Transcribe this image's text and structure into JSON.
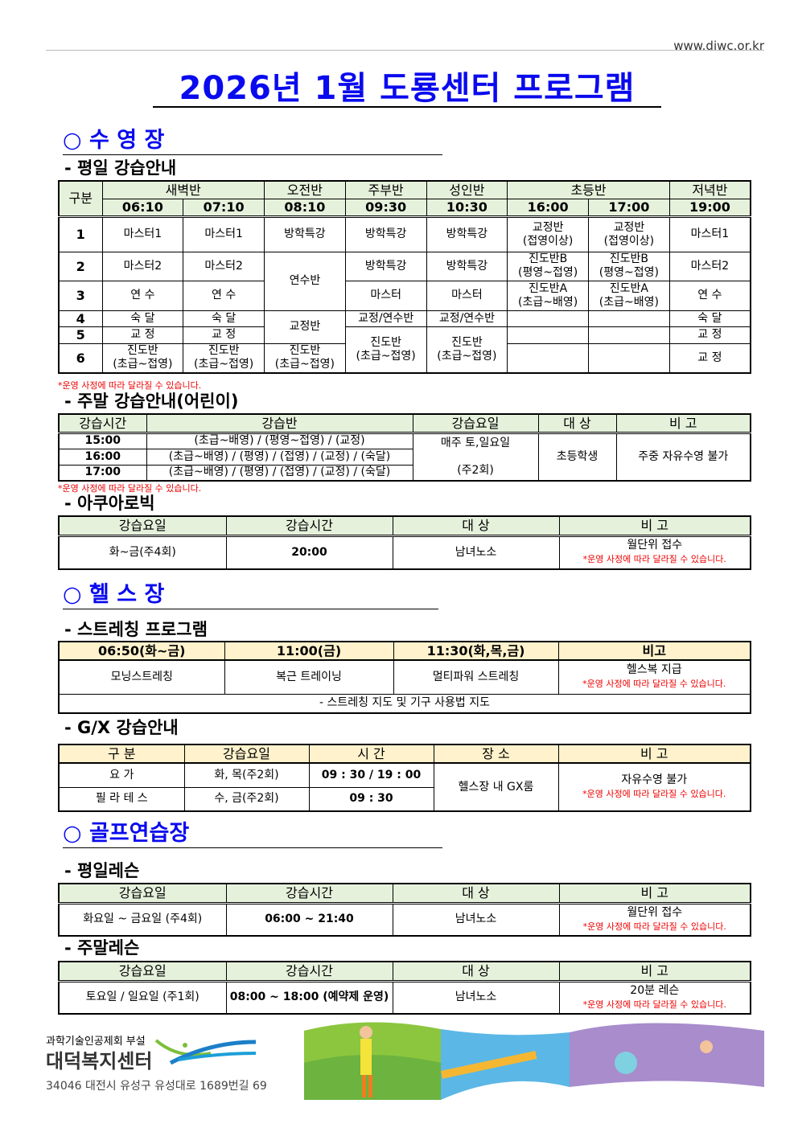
{
  "url": "www.diwc.or.kr",
  "title": "2026년 1월 도룡센터 프로그램",
  "pool": {
    "heading": "○ 수 영 장",
    "weekday": {
      "heading": "- 평일 강습안내",
      "col_label": "구분",
      "groups": [
        "새벽반",
        "오전반",
        "주부반",
        "성인반",
        "초등반",
        "저녁반"
      ],
      "times": [
        "06:10",
        "07:10",
        "08:10",
        "09:30",
        "10:30",
        "16:00",
        "17:00",
        "19:00"
      ],
      "rows": {
        "r1": [
          "1",
          "마스터1",
          "마스터1",
          "방학특강",
          "방학특강",
          "방학특강",
          "교정반\n(접영이상)",
          "교정반\n(접영이상)",
          "마스터1"
        ],
        "r2": [
          "2",
          "마스터2",
          "마스터2",
          "연수반",
          "방학특강",
          "방학특강",
          "진도반B\n(평영~접영)",
          "진도반B\n(평영~접영)",
          "마스터2"
        ],
        "r3": [
          "3",
          "연 수",
          "연 수",
          "마스터",
          "마스터",
          "진도반A\n(초급~배영)",
          "진도반A\n(초급~배영)",
          "연 수"
        ],
        "r4": [
          "4",
          "숙 달",
          "숙 달",
          "교정반",
          "교정/연수반",
          "교정/연수반",
          "",
          "",
          "숙 달"
        ],
        "r5": [
          "5",
          "교 정",
          "교 정",
          "진도반\n(초급~접영)",
          "진도반\n(초급~접영)",
          "",
          "",
          "교 정"
        ],
        "r6": [
          "6",
          "진도반\n(초급~접영)",
          "진도반\n(초급~접영)",
          "진도반\n(초급~접영)",
          "",
          "",
          "교 정"
        ]
      },
      "note": "*운영 사정에 따라 달라질 수 있습니다."
    },
    "weekend": {
      "heading": "- 주말 강습안내(어린이)",
      "headers": [
        "강습시간",
        "강습반",
        "강습요일",
        "대 상",
        "비 고"
      ],
      "rows": [
        {
          "time": "15:00",
          "class": "(초급~배영) / (평영~접영) / (교정)"
        },
        {
          "time": "16:00",
          "class": "(초급~배영) / (평영) / (접영) / (교정) / (숙달)"
        },
        {
          "time": "17:00",
          "class": "(초급~배영) / (평영) / (접영) / (교정) / (숙달)"
        }
      ],
      "days": "매주 토,일요일",
      "days2": "(주2회)",
      "target": "초등학생",
      "remark": "주중 자유수영 불가",
      "note": "*운영 사정에 따라 달라질 수 있습니다."
    },
    "aqua": {
      "heading": "- 아쿠아로빅",
      "headers": [
        "강습요일",
        "강습시간",
        "대 상",
        "비 고"
      ],
      "row": [
        "화~금(주4회)",
        "20:00",
        "남녀노소",
        "월단위 접수"
      ],
      "note": "*운영 사정에 따라 달라질 수 있습니다."
    }
  },
  "gym": {
    "heading": "○ 헬 스 장",
    "stretch": {
      "heading": "- 스트레칭 프로그램",
      "headers": [
        "06:50(화~금)",
        "11:00(금)",
        "11:30(화,목,금)",
        "비고"
      ],
      "row": [
        "모닝스트레칭",
        "복근 트레이닝",
        "멀티파워 스트레칭",
        "헬스복 지급"
      ],
      "note": "*운영 사정에 따라 달라질 수 있습니다.",
      "footer": "- 스트레칭 지도 및 기구 사용법 지도"
    },
    "gx": {
      "heading": "- G/X 강습안내",
      "headers": [
        "구 분",
        "강습요일",
        "시 간",
        "장 소",
        "비 고"
      ],
      "rows": [
        [
          "요 가",
          "화, 목(주2회)",
          "09 : 30 / 19 : 00"
        ],
        [
          "필 라 테 스",
          "수, 금(주2회)",
          "09 : 30"
        ]
      ],
      "place": "헬스장 내 GX룸",
      "remark": "자유수영 불가",
      "note": "*운영 사정에 따라 달라질 수 있습니다."
    }
  },
  "golf": {
    "heading": "○ 골프연습장",
    "weekday": {
      "heading": "- 평일레슨",
      "headers": [
        "강습요일",
        "강습시간",
        "대 상",
        "비 고"
      ],
      "row": [
        "화요일 ~ 금요일 (주4회)",
        "06:00 ~ 21:40",
        "남녀노소",
        "월단위 접수"
      ],
      "note": "*운영 사정에 따라 달라질 수 있습니다."
    },
    "weekend": {
      "heading": "- 주말레슨",
      "headers": [
        "강습요일",
        "강습시간",
        "대 상",
        "비 고"
      ],
      "row": [
        "토요일 / 일요일 (주1회)",
        "08:00 ~ 18:00 (예약제 운영)",
        "남녀노소",
        "20분 레슨"
      ],
      "note": "*운영 사정에 따라 달라질 수 있습니다."
    }
  },
  "footer": {
    "org_parent": "과학기술인공제회 부설",
    "org_name": "대덕복지센터",
    "address": "34046 대전시 유성구 유성대로 1689번길 69"
  },
  "colors": {
    "title": "#0a0aee",
    "header_bg": "#e6f1dc",
    "note": "#ee0000"
  }
}
